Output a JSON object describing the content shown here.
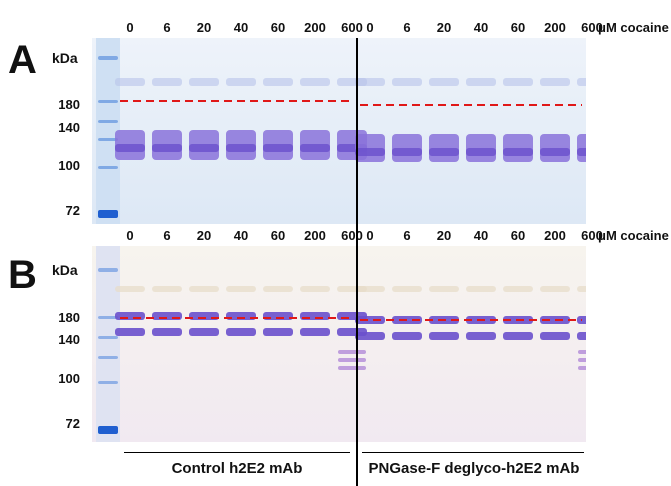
{
  "panels": [
    {
      "letter": "A",
      "kda_label": "kDa",
      "markers": [
        "180",
        "140",
        "100",
        "72"
      ],
      "lanes": [
        "0",
        "6",
        "20",
        "40",
        "60",
        "200",
        "600",
        "0",
        "6",
        "20",
        "40",
        "60",
        "200",
        "600"
      ],
      "unit_label": "μM cocaine"
    },
    {
      "letter": "B",
      "kda_label": "kDa",
      "markers": [
        "180",
        "140",
        "100",
        "72"
      ],
      "lanes": [
        "0",
        "6",
        "20",
        "40",
        "60",
        "200",
        "600",
        "0",
        "6",
        "20",
        "40",
        "60",
        "200",
        "600"
      ],
      "unit_label": "μM cocaine"
    }
  ],
  "groups": {
    "left": "Control h2E2 mAb",
    "right": "PNGase-F deglyco-h2E2 mAb"
  },
  "colors": {
    "gel_a": "#e3ecf6",
    "gel_b": "#f3eef3",
    "band": "#7f67d6",
    "ladder": "#2f6ed8",
    "dashed_line": "#e01818"
  }
}
